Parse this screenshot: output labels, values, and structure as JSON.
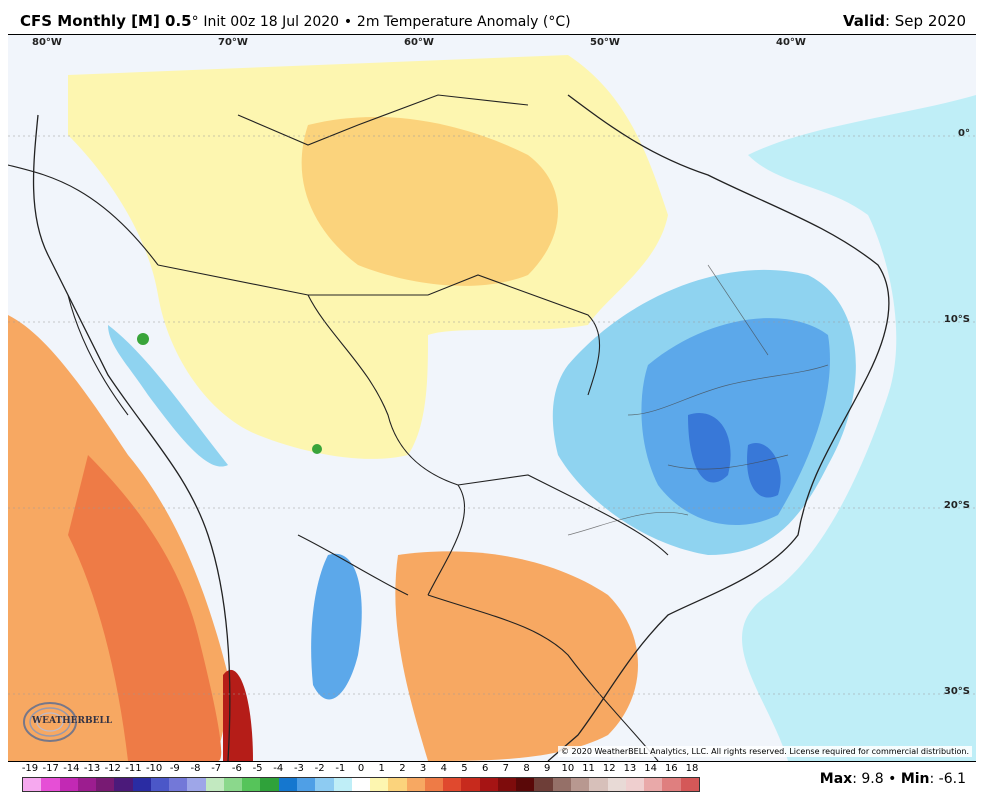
{
  "header": {
    "model": "CFS Monthly [M] 0.5",
    "degree": "°",
    "init": "Init 00z 18 Jul 2020",
    "bullet": "•",
    "field": "2m Temperature Anomaly (°C)",
    "valid_label": "Valid",
    "valid_value": ": Sep 2020"
  },
  "map": {
    "lon_labels": [
      "80°W",
      "70°W",
      "60°W",
      "50°W",
      "40°W"
    ],
    "lat_labels": [
      "0°",
      "10°S",
      "20°S",
      "30°S"
    ],
    "copyright": "© 2020 WeatherBELL Analytics, LLC. All rights reserved. License required for commercial distribution.",
    "logo_text": "WEATHERBELL",
    "colors": {
      "ocean_neutral": "#f1f5fb",
      "warm_1": "#fdf6b0",
      "warm_2": "#fbd37c",
      "warm_3": "#f7a862",
      "warm_4": "#ee7b46",
      "warm_5": "#e0492e",
      "warm_6": "#b51d18",
      "cool_1": "#bfeef7",
      "cool_2": "#8fd3f0",
      "cool_3": "#5ca8ea",
      "cool_4": "#3878d8",
      "cool_5": "#2150b8",
      "green": "#39a43a",
      "border": "#222222"
    }
  },
  "colorbar": {
    "ticks": [
      "-19",
      "-17",
      "-14",
      "-13",
      "-12",
      "-11",
      "-10",
      "-9",
      "-8",
      "-7",
      "-6",
      "-5",
      "-4",
      "-3",
      "-2",
      "-1",
      "0",
      "1",
      "2",
      "3",
      "4",
      "5",
      "6",
      "7",
      "8",
      "9",
      "10",
      "11",
      "12",
      "13",
      "14",
      "16",
      "18"
    ],
    "colors": [
      "#f6a9ef",
      "#e64fd6",
      "#c229b4",
      "#9c1d8f",
      "#781a73",
      "#4b1a7a",
      "#2a2ca3",
      "#4b57c8",
      "#7378d8",
      "#9ea6e8",
      "#c2e9c0",
      "#8bd88c",
      "#56c45a",
      "#2fa23a",
      "#1577cf",
      "#4f9fe6",
      "#8dcbf2",
      "#bfeef7",
      "#ffffff",
      "#fdf6b0",
      "#fbd37c",
      "#f7a862",
      "#ee7b46",
      "#e0492e",
      "#c72a1d",
      "#a61414",
      "#7e0c0c",
      "#5a0808",
      "#6e3e38",
      "#957068",
      "#b89890",
      "#d7c0ba",
      "#e8dad6",
      "#efcfcf",
      "#e9a9a9",
      "#df7f7f",
      "#d45858"
    ],
    "max_label": "Max",
    "max_value": ": 9.8",
    "bullet": "•",
    "min_label": "Min",
    "min_value": ": -6.1"
  }
}
